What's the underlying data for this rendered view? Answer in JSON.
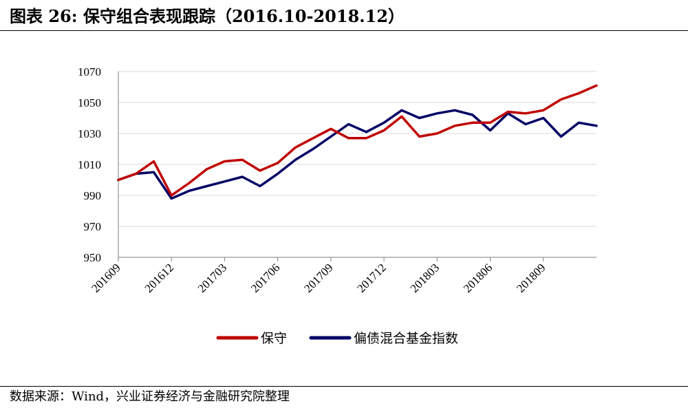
{
  "title": "图表 26:  保守组合表现跟踪（2016.10-2018.12）",
  "source": "数据来源：Wind，兴业证券经济与金融研究院整理",
  "colors": {
    "series_a": "#C00000",
    "series_b": "#000066",
    "grid": "#D9D9D9",
    "axis": "#7F7F7F"
  },
  "chart_data": {
    "type": "line",
    "title": "",
    "xlabel": "",
    "ylabel": "",
    "ylim": [
      950,
      1070
    ],
    "yticks": [
      950,
      970,
      990,
      1010,
      1030,
      1050,
      1070
    ],
    "xlim": [
      "201609",
      "201812"
    ],
    "xticks": [
      "201609",
      "201612",
      "201703",
      "201706",
      "201709",
      "201712",
      "201803",
      "201806",
      "201809"
    ],
    "grid": "horizontal",
    "legend": "bottom",
    "series": [
      {
        "name": "保守",
        "x": [
          "201609",
          "201610",
          "201611",
          "201612",
          "201701",
          "201702",
          "201703",
          "201704",
          "201705",
          "201706",
          "201707",
          "201708",
          "201709",
          "201710",
          "201711",
          "201712",
          "201801",
          "201802",
          "201803",
          "201804",
          "201805",
          "201806",
          "201807",
          "201808",
          "201809",
          "201810",
          "201811",
          "201812"
        ],
        "values": [
          1000,
          1004,
          1012,
          990,
          998,
          1007,
          1012,
          1013,
          1006,
          1011,
          1021,
          1027,
          1033,
          1027,
          1027,
          1032,
          1041,
          1028,
          1030,
          1035,
          1037,
          1037,
          1044,
          1043,
          1045,
          1052,
          1056,
          1061
        ]
      },
      {
        "name": "偏债混合基金指数",
        "x": [
          "201609",
          "201610",
          "201611",
          "201612",
          "201701",
          "201702",
          "201703",
          "201704",
          "201705",
          "201706",
          "201707",
          "201708",
          "201709",
          "201710",
          "201711",
          "201712",
          "201801",
          "201802",
          "201803",
          "201804",
          "201805",
          "201806",
          "201807",
          "201808",
          "201809",
          "201810",
          "201811",
          "201812"
        ],
        "values": [
          1000,
          1004,
          1005,
          988,
          993,
          996,
          999,
          1002,
          996,
          1004,
          1013,
          1020,
          1028,
          1036,
          1031,
          1037,
          1045,
          1040,
          1043,
          1045,
          1042,
          1032,
          1043,
          1036,
          1040,
          1028,
          1037,
          1035
        ]
      }
    ]
  }
}
